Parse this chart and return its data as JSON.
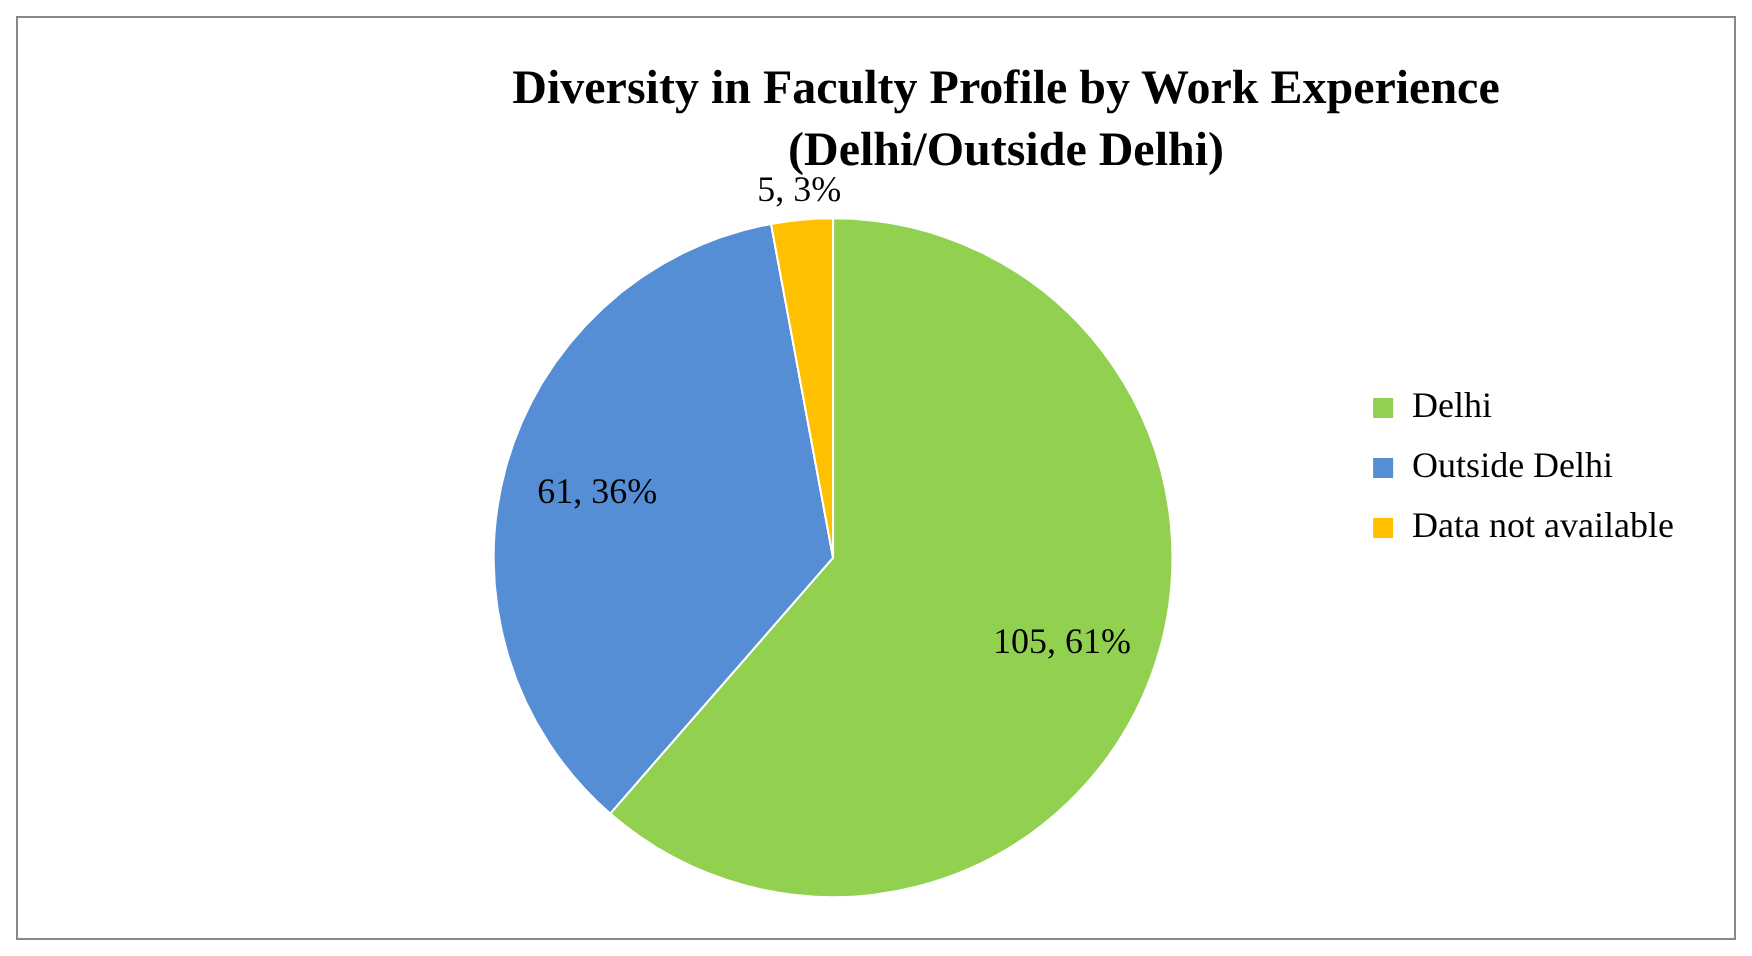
{
  "chart_data": {
    "type": "pie",
    "title": "Diversity in Faculty Profile by Work Experience",
    "subtitle": "(Delhi/Outside Delhi)",
    "categories": [
      "Delhi",
      "Outside Delhi",
      "Data not available"
    ],
    "values": [
      105,
      61,
      5
    ],
    "colors": [
      "#92d050",
      "#558ed5",
      "#ffc000"
    ],
    "value_labels": [
      "105, 61%",
      "61, 36%",
      "5, 3%"
    ],
    "legend": "right"
  }
}
